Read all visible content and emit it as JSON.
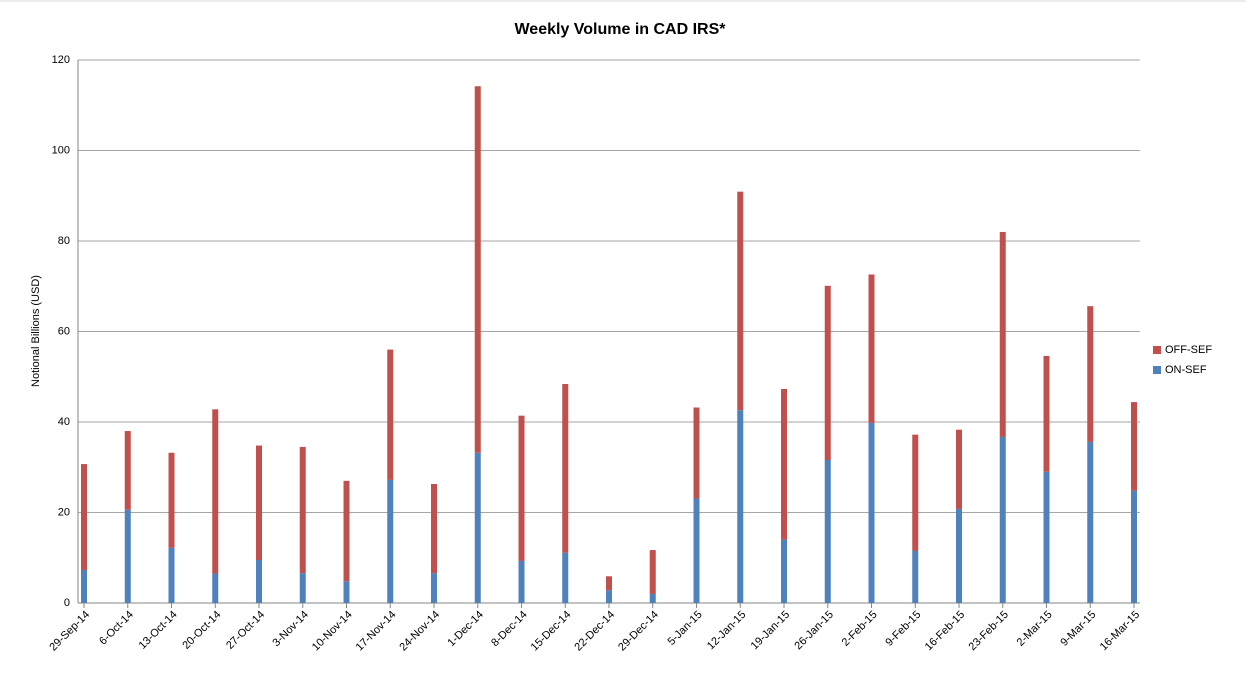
{
  "chart_data": {
    "type": "bar",
    "stacked": true,
    "title": "Weekly Volume in CAD IRS*",
    "y_label": "Notional Billions (USD)",
    "categories": [
      "29-Sep-14",
      "6-Oct-14",
      "13-Oct-14",
      "20-Oct-14",
      "27-Oct-14",
      "3-Nov-14",
      "10-Nov-14",
      "17-Nov-14",
      "24-Nov-14",
      "1-Dec-14",
      "8-Dec-14",
      "15-Dec-14",
      "22-Dec-14",
      "29-Dec-14",
      "5-Jan-15",
      "12-Jan-15",
      "19-Jan-15",
      "26-Jan-15",
      "2-Feb-15",
      "9-Feb-15",
      "16-Feb-15",
      "23-Feb-15",
      "2-Mar-15",
      "9-Mar-15",
      "16-Mar-15"
    ],
    "series": [
      {
        "name": "ON-SEF",
        "color": "#4f81bd",
        "values": [
          7.3,
          20.6,
          12.2,
          6.5,
          9.5,
          6.6,
          4.8,
          27.2,
          6.6,
          33.2,
          9.3,
          11.1,
          2.8,
          2.0,
          23.1,
          42.6,
          14.0,
          31.6,
          39.8,
          11.5,
          20.8,
          36.7,
          29.0,
          35.6,
          24.8
        ]
      },
      {
        "name": "OFF-SEF",
        "color": "#c0504d",
        "values": [
          23.4,
          17.4,
          21.0,
          36.3,
          25.3,
          27.9,
          22.2,
          28.8,
          19.7,
          81.0,
          32.1,
          37.3,
          3.1,
          9.7,
          20.1,
          48.3,
          33.3,
          38.5,
          32.8,
          25.7,
          17.5,
          45.3,
          25.6,
          30.0,
          19.6
        ]
      }
    ],
    "ylim": [
      0,
      120
    ],
    "yticks": [
      0,
      20,
      40,
      60,
      80,
      100,
      120
    ],
    "grid": true,
    "legend": "right"
  }
}
